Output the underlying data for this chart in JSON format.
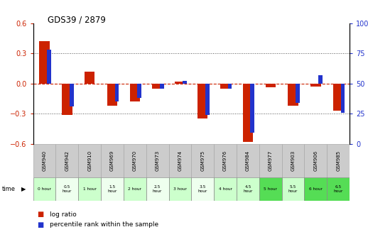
{
  "title": "GDS39 / 2879",
  "samples": [
    "GSM940",
    "GSM942",
    "GSM910",
    "GSM969",
    "GSM970",
    "GSM973",
    "GSM974",
    "GSM975",
    "GSM976",
    "GSM984",
    "GSM977",
    "GSM903",
    "GSM906",
    "GSM985"
  ],
  "time_labels": [
    "0 hour",
    "0.5\nhour",
    "1 hour",
    "1.5\nhour",
    "2 hour",
    "2.5\nhour",
    "3 hour",
    "3.5\nhour",
    "4 hour",
    "4.5\nhour",
    "5 hour",
    "5.5\nhour",
    "6 hour",
    "6.5\nhour"
  ],
  "log_ratio": [
    0.42,
    -0.31,
    0.12,
    -0.22,
    -0.18,
    -0.05,
    0.02,
    -0.35,
    -0.05,
    -0.58,
    -0.04,
    -0.22,
    -0.03,
    -0.27
  ],
  "percentile": [
    78,
    31,
    50,
    35,
    38,
    46,
    52,
    24,
    46,
    9,
    50,
    34,
    57,
    26
  ],
  "ylim_left": [
    -0.6,
    0.6
  ],
  "ylim_right": [
    0,
    100
  ],
  "yticks_left": [
    -0.6,
    -0.3,
    0,
    0.3,
    0.6
  ],
  "yticks_right": [
    0,
    25,
    50,
    75,
    100
  ],
  "bar_color_red": "#cc2200",
  "bar_color_blue": "#2233cc",
  "time_row_colors": [
    "#ccffcc",
    "#eeffee",
    "#ccffcc",
    "#eeffee",
    "#ccffcc",
    "#eeffee",
    "#ccffcc",
    "#eeffee",
    "#ccffcc",
    "#ccffcc",
    "#55dd55",
    "#ccffcc",
    "#55dd55",
    "#55dd55"
  ],
  "sample_row_color": "#cccccc",
  "legend_red_label": "log ratio",
  "legend_blue_label": "percentile rank within the sample"
}
